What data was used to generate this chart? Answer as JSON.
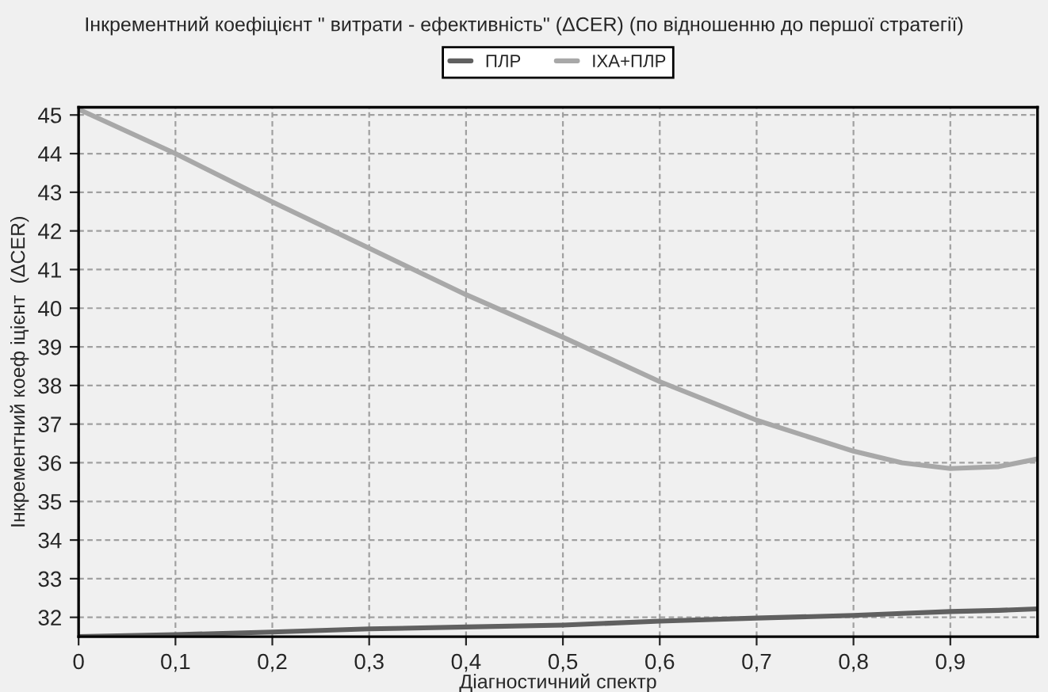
{
  "chart_data": {
    "type": "line",
    "title": "Інкрементний коефіцієнт \" витрати - ефективність\" (ΔCER) (по відношенню до першої стратегії)",
    "xlabel": "Діагностичний спектр",
    "ylabel": "Інкрементний коеф іцієнт  (ΔCER)",
    "x": [
      0,
      0.1,
      0.2,
      0.3,
      0.4,
      0.5,
      0.6,
      0.7,
      0.8,
      0.85,
      0.9,
      0.95,
      0.99
    ],
    "series": [
      {
        "name": "ПЛР",
        "color": "#606060",
        "values": [
          31.5,
          31.55,
          31.62,
          31.7,
          31.75,
          31.8,
          31.9,
          31.98,
          32.05,
          32.1,
          32.15,
          32.18,
          32.22
        ]
      },
      {
        "name": "ІХА+ПЛР",
        "color": "#a8a8a8",
        "values": [
          45.15,
          44.0,
          42.75,
          41.55,
          40.35,
          39.25,
          38.1,
          37.1,
          36.3,
          36.0,
          35.85,
          35.9,
          36.1
        ]
      }
    ],
    "xlim": [
      0,
      0.99
    ],
    "ylim": [
      31.5,
      45.2
    ],
    "xticks": [
      {
        "value": 0,
        "label": "0"
      },
      {
        "value": 0.1,
        "label": "0,1"
      },
      {
        "value": 0.2,
        "label": "0,2"
      },
      {
        "value": 0.3,
        "label": "0,3"
      },
      {
        "value": 0.4,
        "label": "0,4"
      },
      {
        "value": 0.5,
        "label": "0,5"
      },
      {
        "value": 0.6,
        "label": "0,6"
      },
      {
        "value": 0.7,
        "label": "0,7"
      },
      {
        "value": 0.8,
        "label": "0,8"
      },
      {
        "value": 0.9,
        "label": "0,9"
      }
    ],
    "yticks": [
      32,
      33,
      34,
      35,
      36,
      37,
      38,
      39,
      40,
      41,
      42,
      43,
      44,
      45
    ],
    "grid": true,
    "legend": "top",
    "line_style": "solid"
  }
}
